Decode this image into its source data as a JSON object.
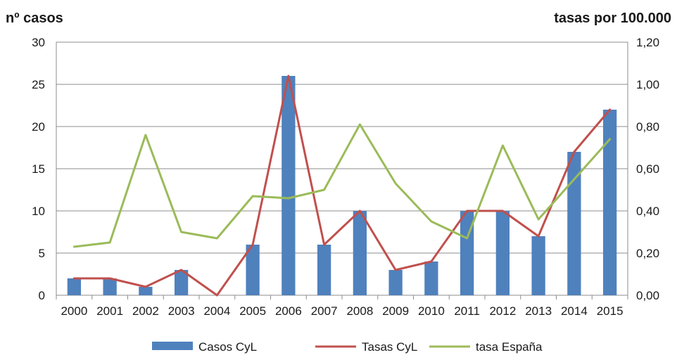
{
  "chart_data": {
    "type": "bar",
    "y_left_label": "nº casos",
    "y_right_label": "tasas por 100.000",
    "categories": [
      "2000",
      "2001",
      "2002",
      "2003",
      "2004",
      "2005",
      "2006",
      "2007",
      "2008",
      "2009",
      "2010",
      "2011",
      "2012",
      "2013",
      "2014",
      "2015"
    ],
    "ylim_left": [
      0,
      30
    ],
    "yticks_left": [
      "0",
      "5",
      "10",
      "15",
      "20",
      "25",
      "30"
    ],
    "ylim_right": [
      0,
      1.2
    ],
    "yticks_right": [
      "0,00",
      "0,20",
      "0,40",
      "0,60",
      "0,80",
      "1,00",
      "1,20"
    ],
    "grid": true,
    "legend_position": "bottom",
    "series": [
      {
        "name": "Casos CyL",
        "type": "bar",
        "axis": "left",
        "color": "#4f81bd",
        "values": [
          2,
          2,
          1,
          3,
          0,
          6,
          26,
          6,
          10,
          3,
          4,
          10,
          10,
          7,
          17,
          22
        ]
      },
      {
        "name": "Tasas CyL",
        "type": "line",
        "axis": "right",
        "color": "#c0504d",
        "values": [
          0.08,
          0.08,
          0.04,
          0.12,
          0.0,
          0.24,
          1.04,
          0.24,
          0.4,
          0.12,
          0.16,
          0.4,
          0.4,
          0.28,
          0.68,
          0.88
        ]
      },
      {
        "name": "tasa España",
        "type": "line",
        "axis": "right",
        "color": "#9bbb59",
        "values": [
          0.23,
          0.25,
          0.76,
          0.3,
          0.27,
          0.47,
          0.46,
          0.5,
          0.81,
          0.53,
          0.35,
          0.27,
          0.71,
          0.36,
          0.55,
          0.74
        ]
      }
    ]
  }
}
